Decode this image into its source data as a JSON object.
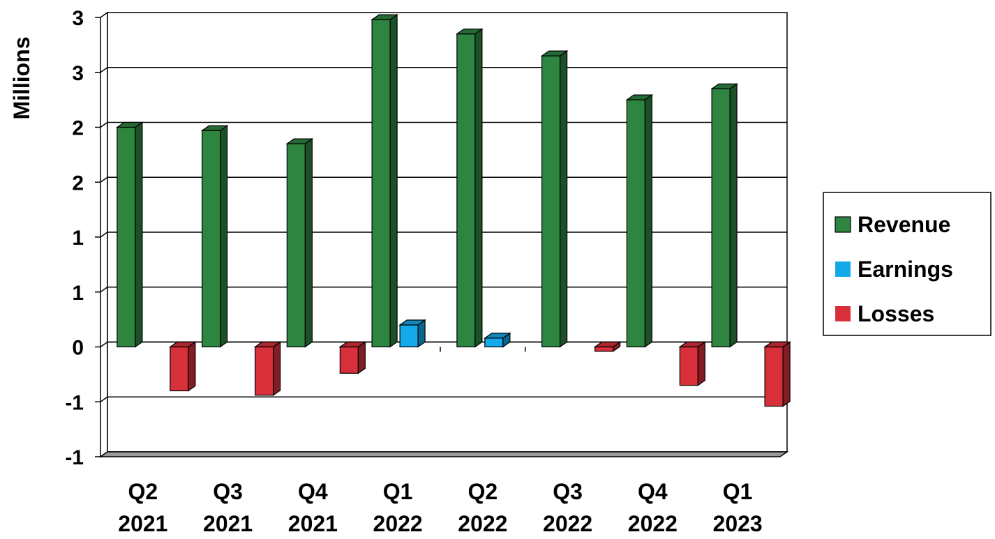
{
  "chart_data": {
    "type": "bar",
    "ylabel": "Millions",
    "y_tick_labels": [
      "3",
      "3",
      "2",
      "2",
      "1",
      "1",
      "0",
      "-1",
      "-1"
    ],
    "ylim": [
      -1.0,
      3.0
    ],
    "categories": [
      "Q2 2021",
      "Q3 2021",
      "Q4 2021",
      "Q1 2022",
      "Q2 2022",
      "Q3 2022",
      "Q4 2022",
      "Q1 2023"
    ],
    "category_lines": [
      [
        "Q2",
        "2021"
      ],
      [
        "Q3",
        "2021"
      ],
      [
        "Q4",
        "2021"
      ],
      [
        "Q1",
        "2022"
      ],
      [
        "Q2",
        "2022"
      ],
      [
        "Q3",
        "2022"
      ],
      [
        "Q4",
        "2022"
      ],
      [
        "Q1",
        "2023"
      ]
    ],
    "series": [
      {
        "name": "Revenue",
        "color": "#2e8540",
        "values": [
          2.0,
          1.97,
          1.85,
          2.98,
          2.85,
          2.65,
          2.25,
          2.35
        ]
      },
      {
        "name": "Earnings",
        "color": "#14a9e9",
        "values": [
          0,
          0,
          0,
          0.2,
          0.08,
          0,
          0,
          0
        ]
      },
      {
        "name": "Losses",
        "color": "#d8303a",
        "values": [
          -0.4,
          -0.44,
          -0.24,
          0,
          0,
          -0.04,
          -0.35,
          -0.54
        ]
      }
    ],
    "grid": true,
    "legend_position": "right",
    "style": "3d-column"
  }
}
